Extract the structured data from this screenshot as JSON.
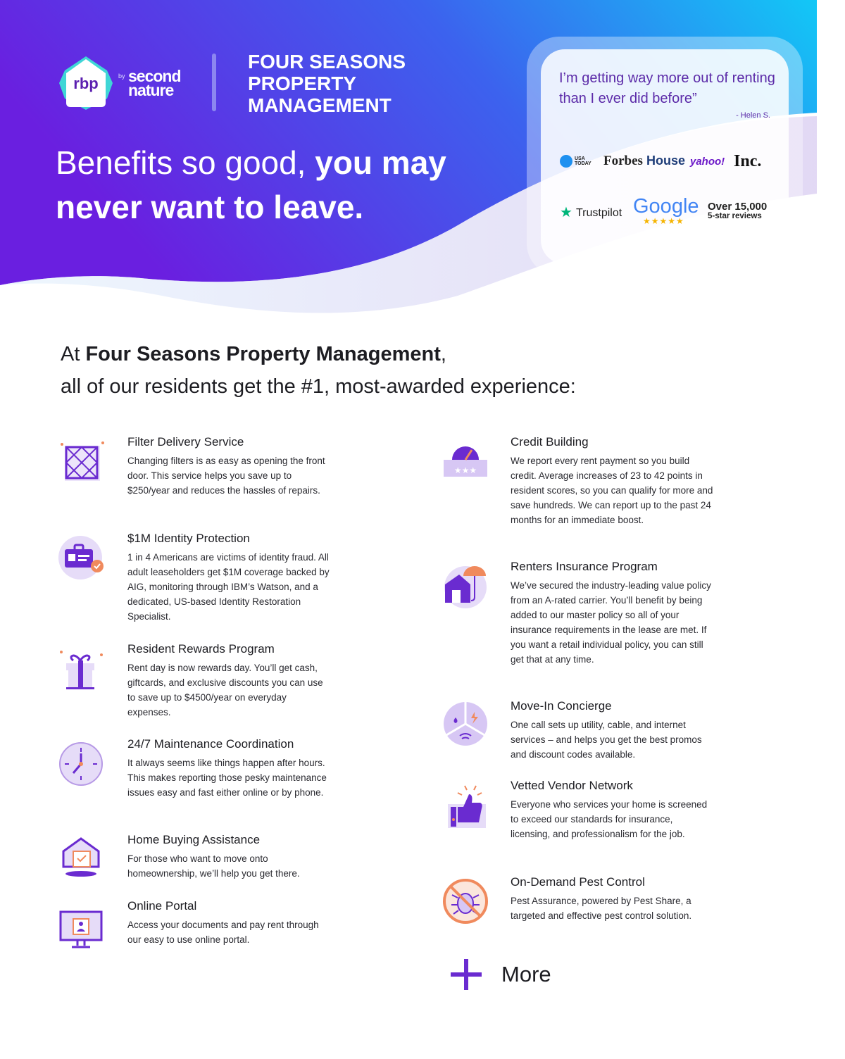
{
  "brand": {
    "logo": "rbp",
    "by": "by",
    "partner": "second nature",
    "company": "FOUR SEASONS PROPERTY MANAGEMENT",
    "colors": {
      "purple": "#6a1fe0",
      "blue": "#3a6ef0",
      "cyan": "#17c6f5",
      "accent": "#5b2aa8"
    }
  },
  "headline": {
    "regular": "Benefits so good, ",
    "bold1": "you may",
    "bold2": "never want to leave."
  },
  "testimonial": {
    "quote": "I’m getting way more out of renting than I ever did before”",
    "author": "- Helen S."
  },
  "press": [
    "USA TODAY",
    "Forbes",
    "House",
    "yahoo!",
    "Inc."
  ],
  "reviews": {
    "trustpilot": "Trustpilot",
    "google": "Google",
    "stars": "★★★★★",
    "count_line1": "Over 15,000",
    "count_line2": "5-star reviews"
  },
  "intro": {
    "prefix": "At ",
    "company": "Four Seasons Property Management",
    "suffix": ",",
    "line2": "all of our residents get the #1, most-awarded experience:"
  },
  "benefits_left": [
    {
      "title": "Filter Delivery Service",
      "desc": "Changing filters is as easy as opening the front door. This service helps you save up to $250/year and reduces the hassles of repairs.",
      "icon": "air-filter-icon"
    },
    {
      "title": "$1M Identity Protection",
      "desc": "1 in 4 Americans are victims of identity fraud. All adult leaseholders get $1M coverage backed by AIG, monitoring through IBM’s Watson, and a dedicated, US-based Identity Restoration Specialist.",
      "icon": "id-badge-icon"
    },
    {
      "title": "Resident Rewards Program",
      "desc": "Rent day is now rewards day. You’ll get cash, giftcards, and exclusive discounts you can use to save up to $4500/year on everyday expenses.",
      "icon": "gift-icon"
    },
    {
      "title": "24/7 Maintenance Coordination",
      "desc": "It always seems like things happen after hours. This makes reporting those pesky maintenance issues easy and fast either online or by phone.",
      "icon": "clock-icon"
    },
    {
      "title": "Home Buying Assistance",
      "desc": "For those who want to move onto homeownership, we’ll help you get there.",
      "icon": "home-calendar-icon"
    },
    {
      "title": "Online Portal",
      "desc": "Access your documents and pay rent through our easy to use online portal.",
      "icon": "computer-icon"
    }
  ],
  "benefits_right": [
    {
      "title": "Credit Building",
      "desc": "We report every rent payment so you build credit. Average increases of 23 to 42 points in resident scores, so you can qualify for more and save hundreds. We can report up to the past 24 months for an immediate boost.",
      "icon": "credit-gauge-icon"
    },
    {
      "title": "Renters Insurance Program",
      "desc": "We’ve secured the industry-leading value policy from an A-rated carrier. You’ll benefit by being added to our master policy so all of your insurance requirements in the lease are met. If you want a retail individual policy, you can still get that at any time.",
      "icon": "umbrella-house-icon"
    },
    {
      "title": "Move-In Concierge",
      "desc": "One call sets up utility, cable, and internet services – and helps you get the best promos and discount codes available.",
      "icon": "utilities-icon"
    },
    {
      "title": "Vetted Vendor Network",
      "desc": "Everyone who services your home is screened to exceed our standards for insurance, licensing, and professionalism for the job.",
      "icon": "thumbs-up-icon"
    },
    {
      "title": "On-Demand Pest Control",
      "desc": "Pest Assurance, powered by Pest Share, a targeted and effective pest control solution.",
      "icon": "no-bug-icon"
    }
  ],
  "more": {
    "label": "More"
  }
}
